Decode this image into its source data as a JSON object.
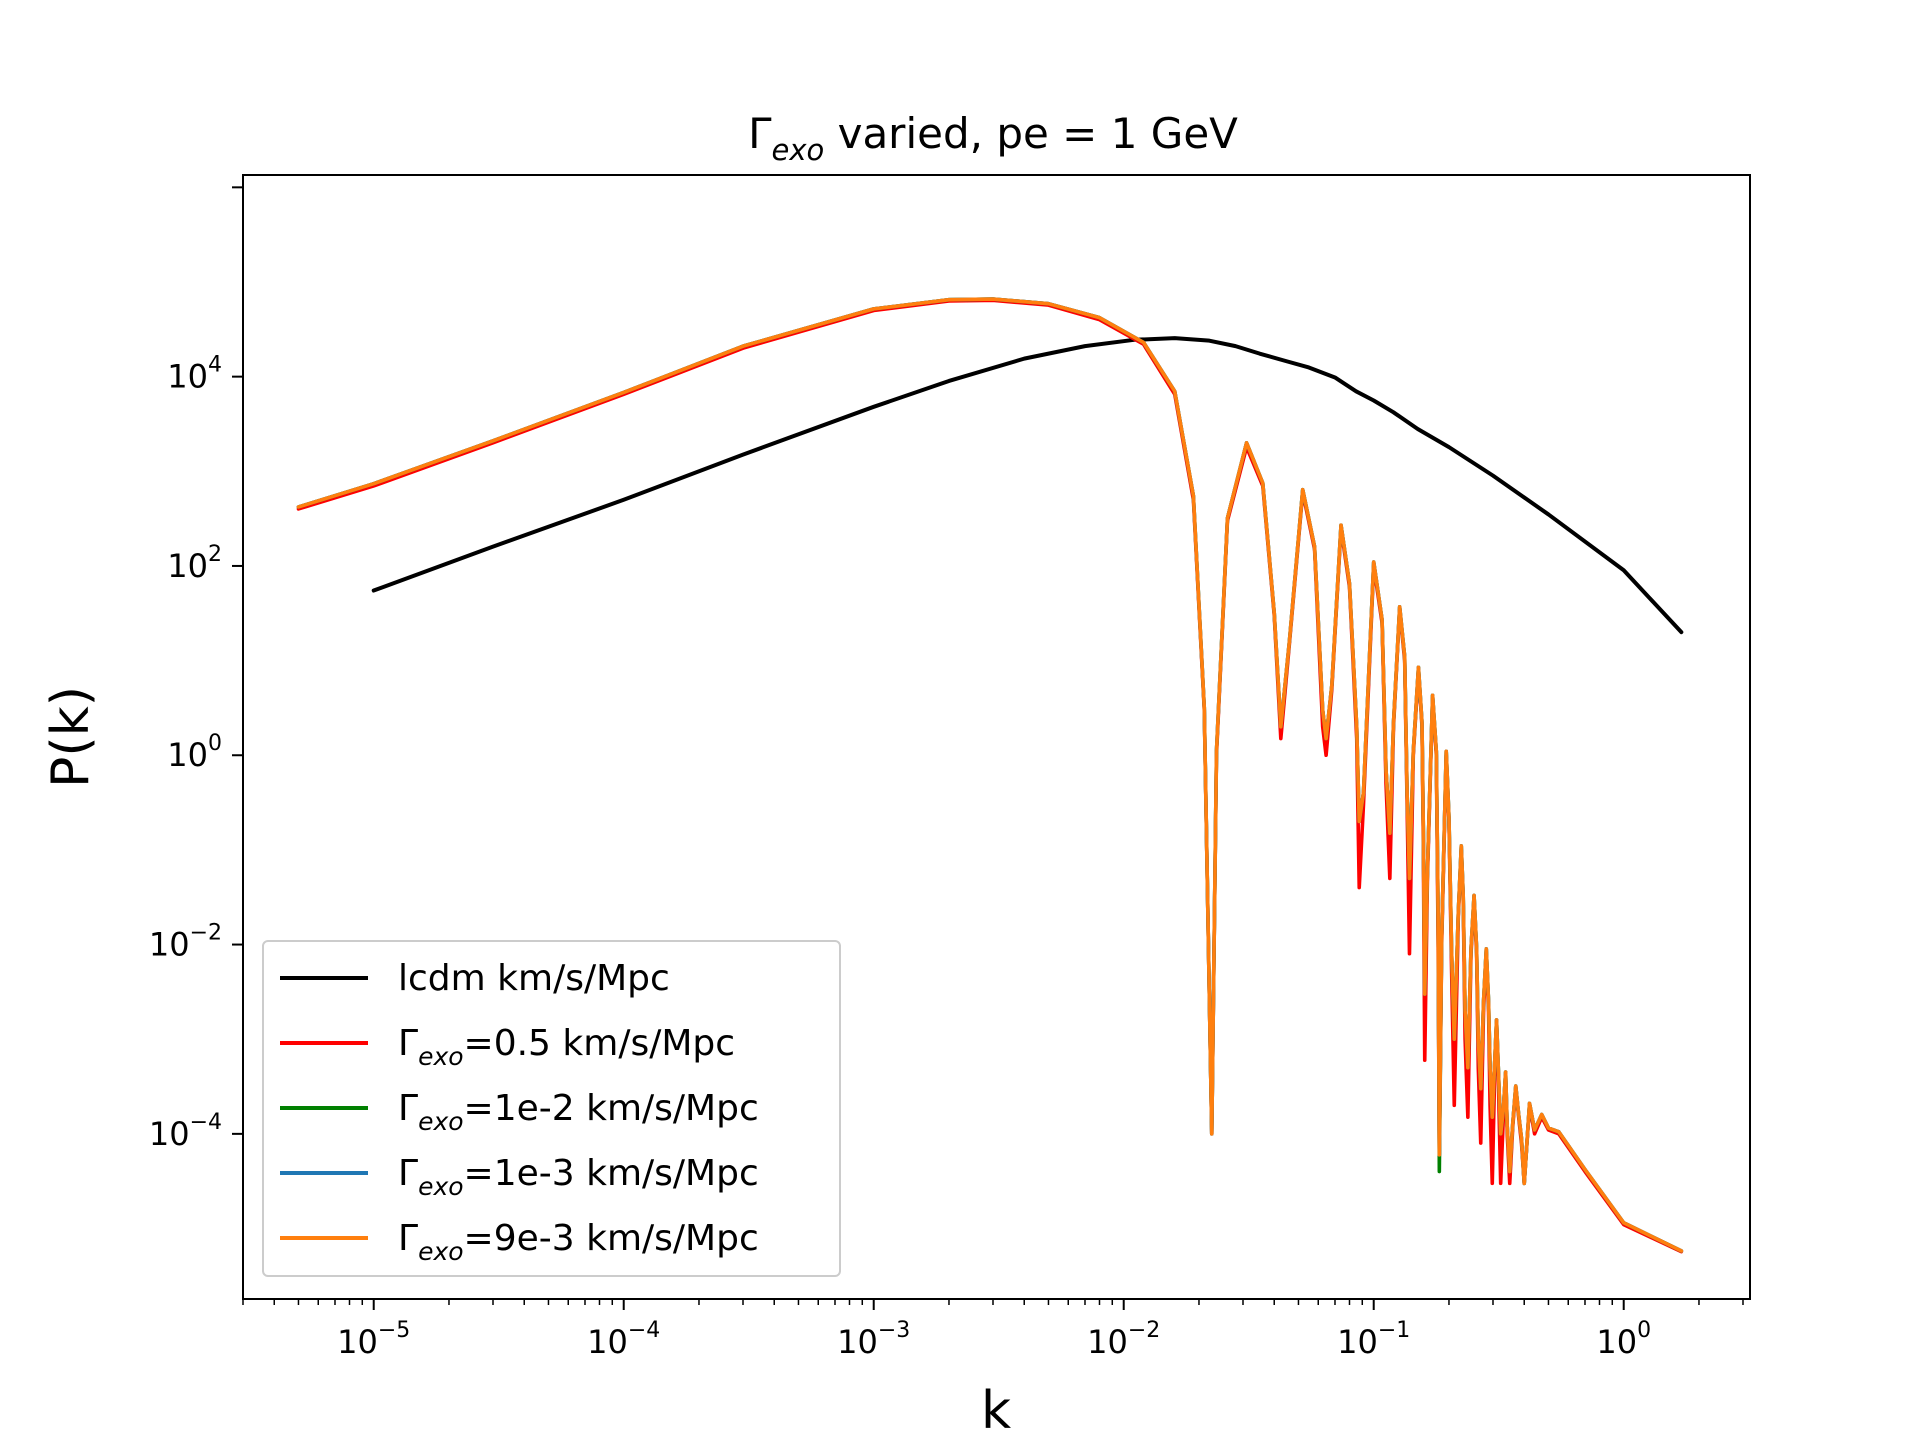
{
  "chart_data": {
    "type": "line",
    "title_main": "Γ",
    "title_sub": "exo",
    "title_rest": " varied, pe = 1 GeV",
    "xlabel": "k",
    "ylabel": "P(k)",
    "xscale": "log",
    "yscale": "log",
    "xlim": [
      3e-06,
      3.2
    ],
    "ylim": [
      1.8e-06,
      1350000.0
    ],
    "x_tick_labels": [
      {
        "value": 1e-05,
        "base": "10",
        "exp": "−5"
      },
      {
        "value": 0.0001,
        "base": "10",
        "exp": "−4"
      },
      {
        "value": 0.001,
        "base": "10",
        "exp": "−3"
      },
      {
        "value": 0.01,
        "base": "10",
        "exp": "−2"
      },
      {
        "value": 0.1,
        "base": "10",
        "exp": "−1"
      },
      {
        "value": 1,
        "base": "10",
        "exp": "0"
      }
    ],
    "y_tick_labels": [
      {
        "value": 0.0001,
        "base": "10",
        "exp": "−4"
      },
      {
        "value": 0.01,
        "base": "10",
        "exp": "−2"
      },
      {
        "value": 1,
        "base": "10",
        "exp": "0"
      },
      {
        "value": 100,
        "base": "10",
        "exp": "2"
      },
      {
        "value": 10000,
        "base": "10",
        "exp": "4"
      }
    ],
    "grid": false,
    "legend_position": "lower-left",
    "series": [
      {
        "name": "lcdm km/s/Mpc",
        "legend_prefix": "",
        "legend_sub": "",
        "legend_suffix": "lcdm km/s/Mpc",
        "color": "#000000",
        "x": [
          1e-05,
          3e-05,
          0.0001,
          0.0003,
          0.001,
          0.002,
          0.004,
          0.007,
          0.011,
          0.016,
          0.022,
          0.028,
          0.035,
          0.045,
          0.055,
          0.07,
          0.085,
          0.1,
          0.12,
          0.15,
          0.2,
          0.3,
          0.5,
          1.0,
          1.7
        ],
        "y": [
          55,
          160,
          500,
          1500,
          4800,
          9000,
          15500,
          21000,
          24500,
          25500,
          24000,
          21000,
          17500,
          14500,
          12500,
          9800,
          7000,
          5600,
          4200,
          2800,
          1800,
          900,
          350,
          90,
          20
        ]
      },
      {
        "name": "Γexo=0.5 km/s/Mpc",
        "legend_prefix": "Γ",
        "legend_sub": "exo",
        "legend_suffix": "=0.5 km/s/Mpc",
        "color": "#ff0000",
        "x": [
          5e-06,
          1e-05,
          3e-05,
          0.0001,
          0.0003,
          0.001,
          0.002,
          0.003,
          0.005,
          0.008,
          0.012,
          0.016,
          0.019,
          0.021,
          0.0225,
          0.0235,
          0.026,
          0.031,
          0.036,
          0.04,
          0.0425,
          0.046,
          0.052,
          0.058,
          0.0625,
          0.0645,
          0.068,
          0.074,
          0.08,
          0.0855,
          0.0875,
          0.091,
          0.1,
          0.108,
          0.112,
          0.116,
          0.12,
          0.127,
          0.133,
          0.136,
          0.139,
          0.144,
          0.151,
          0.156,
          0.158,
          0.16,
          0.164,
          0.172,
          0.178,
          0.181,
          0.183,
          0.187,
          0.195,
          0.2,
          0.205,
          0.21,
          0.218,
          0.224,
          0.228,
          0.232,
          0.238,
          0.245,
          0.252,
          0.258,
          0.262,
          0.268,
          0.275,
          0.282,
          0.288,
          0.292,
          0.298,
          0.305,
          0.31,
          0.315,
          0.322,
          0.33,
          0.337,
          0.342,
          0.35,
          0.36,
          0.37,
          0.38,
          0.39,
          0.4,
          0.42,
          0.44,
          0.47,
          0.5,
          0.55,
          0.7,
          1.0,
          1.7
        ],
        "y": [
          400,
          700,
          2000,
          6500,
          20000,
          50000,
          63000,
          64000,
          57000,
          40000,
          22000,
          6500,
          500,
          3,
          0.0001,
          1,
          300,
          1800,
          700,
          30,
          1.5,
          15,
          600,
          150,
          2,
          1,
          5,
          250,
          60,
          1.5,
          0.04,
          0.3,
          100,
          25,
          0.5,
          0.05,
          2,
          35,
          10,
          0.3,
          0.008,
          1,
          8,
          2,
          0.1,
          0.0006,
          0.05,
          4,
          1,
          0.01,
          6e-05,
          0.01,
          1,
          0.2,
          0.005,
          0.0002,
          0.02,
          0.1,
          0.03,
          0.001,
          0.00015,
          0.008,
          0.03,
          0.008,
          0.0005,
          8e-05,
          0.002,
          0.008,
          0.002,
          0.0002,
          3e-05,
          0.0005,
          0.0015,
          0.0004,
          3e-05,
          0.00015,
          0.0004,
          0.0001,
          3e-05,
          0.00012,
          0.0003,
          0.00015,
          8e-05,
          3e-05,
          0.0002,
          0.0001,
          0.00015,
          0.00011,
          0.0001,
          4e-05,
          1.1e-05,
          5.7e-06
        ]
      },
      {
        "name": "Γexo=1e-2 km/s/Mpc",
        "legend_prefix": "Γ",
        "legend_sub": "exo",
        "legend_suffix": "=1e-2 km/s/Mpc",
        "color": "#008000",
        "x": [
          5e-06,
          1e-05,
          3e-05,
          0.0001,
          0.0003,
          0.001,
          0.002,
          0.003,
          0.005,
          0.008,
          0.012,
          0.016,
          0.019,
          0.021,
          0.0225,
          0.0235,
          0.026,
          0.031,
          0.036,
          0.04,
          0.0425,
          0.046,
          0.052,
          0.058,
          0.0625,
          0.0645,
          0.068,
          0.074,
          0.08,
          0.0855,
          0.0875,
          0.091,
          0.1,
          0.108,
          0.112,
          0.116,
          0.12,
          0.127,
          0.133,
          0.136,
          0.139,
          0.144,
          0.151,
          0.156,
          0.158,
          0.16,
          0.164,
          0.172,
          0.178,
          0.181,
          0.183,
          0.187,
          0.195,
          0.2,
          0.205,
          0.21,
          0.218,
          0.224,
          0.228,
          0.232,
          0.238,
          0.245,
          0.252,
          0.258,
          0.262,
          0.268,
          0.275,
          0.282,
          0.288,
          0.292,
          0.298,
          0.305,
          0.31,
          0.315,
          0.322,
          0.33,
          0.337,
          0.342,
          0.35,
          0.36,
          0.37,
          0.38,
          0.39,
          0.4,
          0.42,
          0.44,
          0.47,
          0.5,
          0.55,
          0.7,
          1.0,
          1.7
        ],
        "y": [
          420,
          740,
          2100,
          6800,
          21000,
          52000,
          65000,
          66000,
          59000,
          42000,
          23000,
          7000,
          550,
          3.2,
          0.0001,
          1.1,
          320,
          2000,
          750,
          32,
          2,
          16,
          640,
          160,
          3,
          1.5,
          5.5,
          270,
          65,
          2,
          0.2,
          0.4,
          110,
          27,
          0.7,
          0.15,
          2.2,
          37,
          11,
          0.4,
          0.05,
          1.1,
          8.5,
          2.2,
          0.15,
          0.003,
          0.06,
          4.3,
          1.1,
          0.02,
          4e-05,
          0.012,
          1.1,
          0.22,
          0.008,
          0.001,
          0.022,
          0.11,
          0.033,
          0.002,
          0.0005,
          0.009,
          0.033,
          0.009,
          0.001,
          0.0003,
          0.0025,
          0.009,
          0.0025,
          0.0005,
          0.00015,
          0.0006,
          0.0016,
          0.0005,
          0.0001,
          0.00018,
          0.00045,
          0.00012,
          4e-05,
          0.00013,
          0.00032,
          0.00016,
          9e-05,
          3e-05,
          0.00021,
          0.00011,
          0.00016,
          0.000115,
          0.000105,
          4.2e-05,
          1.15e-05,
          5.8e-06
        ]
      },
      {
        "name": "Γexo=1e-3 km/s/Mpc",
        "legend_prefix": "Γ",
        "legend_sub": "exo",
        "legend_suffix": "=1e-3 km/s/Mpc",
        "color": "#1f77b4",
        "x": [
          5e-06,
          1e-05,
          3e-05,
          0.0001,
          0.0003,
          0.001,
          0.002,
          0.003,
          0.005,
          0.008,
          0.012,
          0.016,
          0.019,
          0.021,
          0.0225,
          0.0235,
          0.026,
          0.031,
          0.036,
          0.04,
          0.0425,
          0.046,
          0.052,
          0.058,
          0.0625,
          0.0645,
          0.068,
          0.074,
          0.08,
          0.0855,
          0.0875,
          0.091,
          0.1,
          0.108,
          0.112,
          0.116,
          0.12,
          0.127,
          0.133,
          0.136,
          0.139,
          0.144,
          0.151,
          0.156,
          0.158,
          0.16,
          0.164,
          0.172,
          0.178,
          0.181,
          0.183,
          0.187,
          0.195,
          0.2,
          0.205,
          0.21,
          0.218,
          0.224,
          0.228,
          0.232,
          0.238,
          0.245,
          0.252,
          0.258,
          0.262,
          0.268,
          0.275,
          0.282,
          0.288,
          0.292,
          0.298,
          0.305,
          0.31,
          0.315,
          0.322,
          0.33,
          0.337,
          0.342,
          0.35,
          0.36,
          0.37,
          0.38,
          0.39,
          0.4,
          0.42,
          0.44,
          0.47,
          0.5,
          0.55,
          0.7,
          1.0,
          1.7
        ],
        "y": [
          420,
          740,
          2100,
          6800,
          21000,
          52000,
          65000,
          66000,
          59000,
          42000,
          23000,
          7000,
          550,
          3.2,
          0.0001,
          1.1,
          320,
          2000,
          750,
          32,
          2,
          16,
          640,
          160,
          3,
          1.5,
          5.5,
          270,
          65,
          2,
          0.2,
          0.4,
          110,
          27,
          0.7,
          0.15,
          2.2,
          37,
          11,
          0.4,
          0.05,
          1.1,
          8.5,
          2.2,
          0.15,
          0.003,
          0.06,
          4.3,
          1.1,
          0.02,
          6e-05,
          0.012,
          1.1,
          0.22,
          0.008,
          0.001,
          0.022,
          0.11,
          0.033,
          0.002,
          0.0005,
          0.009,
          0.033,
          0.009,
          0.001,
          0.0003,
          0.0025,
          0.009,
          0.0025,
          0.0005,
          0.00015,
          0.0006,
          0.0016,
          0.0005,
          0.0001,
          0.00018,
          0.00045,
          0.00012,
          4e-05,
          0.00013,
          0.00032,
          0.00016,
          9e-05,
          3e-05,
          0.00021,
          0.00011,
          0.00016,
          0.000115,
          0.000105,
          4.2e-05,
          1.15e-05,
          5.8e-06
        ]
      },
      {
        "name": "Γexo=9e-3 km/s/Mpc",
        "legend_prefix": "Γ",
        "legend_sub": "exo",
        "legend_suffix": "=9e-3 km/s/Mpc",
        "color": "#ff7f0e",
        "x": [
          5e-06,
          1e-05,
          3e-05,
          0.0001,
          0.0003,
          0.001,
          0.002,
          0.003,
          0.005,
          0.008,
          0.012,
          0.016,
          0.019,
          0.021,
          0.0225,
          0.0235,
          0.026,
          0.031,
          0.036,
          0.04,
          0.0425,
          0.046,
          0.052,
          0.058,
          0.0625,
          0.0645,
          0.068,
          0.074,
          0.08,
          0.0855,
          0.0875,
          0.091,
          0.1,
          0.108,
          0.112,
          0.116,
          0.12,
          0.127,
          0.133,
          0.136,
          0.139,
          0.144,
          0.151,
          0.156,
          0.158,
          0.16,
          0.164,
          0.172,
          0.178,
          0.181,
          0.183,
          0.187,
          0.195,
          0.2,
          0.205,
          0.21,
          0.218,
          0.224,
          0.228,
          0.232,
          0.238,
          0.245,
          0.252,
          0.258,
          0.262,
          0.268,
          0.275,
          0.282,
          0.288,
          0.292,
          0.298,
          0.305,
          0.31,
          0.315,
          0.322,
          0.33,
          0.337,
          0.342,
          0.35,
          0.36,
          0.37,
          0.38,
          0.39,
          0.4,
          0.42,
          0.44,
          0.47,
          0.5,
          0.55,
          0.7,
          1.0,
          1.7
        ],
        "y": [
          420,
          740,
          2100,
          6800,
          21000,
          52000,
          65000,
          66000,
          59000,
          42000,
          23000,
          7000,
          550,
          3.2,
          0.0001,
          1.1,
          320,
          2000,
          750,
          32,
          2,
          16,
          640,
          160,
          3,
          1.5,
          5.5,
          270,
          65,
          2,
          0.2,
          0.4,
          110,
          27,
          0.7,
          0.15,
          2.2,
          37,
          11,
          0.4,
          0.05,
          1.1,
          8.5,
          2.2,
          0.15,
          0.003,
          0.06,
          4.3,
          1.1,
          0.02,
          6e-05,
          0.012,
          1.1,
          0.22,
          0.008,
          0.001,
          0.022,
          0.11,
          0.033,
          0.002,
          0.0005,
          0.009,
          0.033,
          0.009,
          0.001,
          0.0003,
          0.0025,
          0.009,
          0.0025,
          0.0005,
          0.00015,
          0.0006,
          0.0016,
          0.0005,
          0.0001,
          0.00018,
          0.00045,
          0.00012,
          4e-05,
          0.00013,
          0.00032,
          0.00016,
          9e-05,
          3e-05,
          0.00021,
          0.00011,
          0.00016,
          0.000115,
          0.000105,
          4.2e-05,
          1.15e-05,
          5.8e-06
        ]
      }
    ]
  }
}
